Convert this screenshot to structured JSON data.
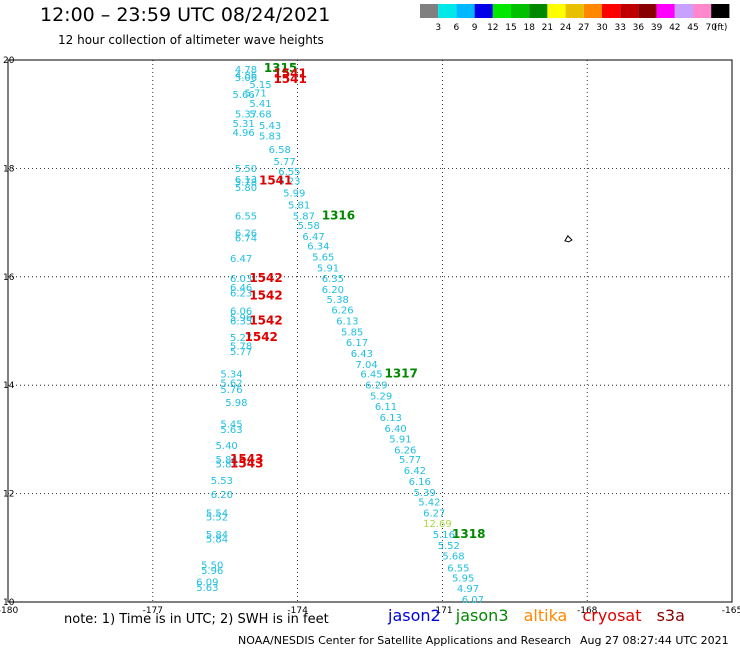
{
  "header": {
    "title": "12:00 – 23:59 UTC 08/24/2021",
    "subtitle": "12 hour collection of altimeter wave heights"
  },
  "legend": {
    "colors": [
      "#808080",
      "#00e8e8",
      "#00b8ff",
      "#0000e8",
      "#00e800",
      "#00c000",
      "#008800",
      "#ffff00",
      "#e8c000",
      "#ff8800",
      "#ff0000",
      "#c00000",
      "#880000",
      "#ff00ff",
      "#c8a0ff",
      "#ff88cc",
      "#000000"
    ],
    "labels": [
      "3",
      "6",
      "9",
      "12",
      "15",
      "18",
      "21",
      "24",
      "27",
      "30",
      "33",
      "36",
      "39",
      "42",
      "45",
      "70"
    ],
    "unit": "(ft)"
  },
  "chart_data": {
    "type": "scatter",
    "title": "12:00 – 23:59 UTC 08/24/2021",
    "xlim": [
      -180,
      -165
    ],
    "ylim": [
      10,
      20
    ],
    "x_ticks": [
      "-180",
      "-177",
      "-174",
      "-171",
      "-168",
      "-165"
    ],
    "y_ticks": [
      "10",
      "12",
      "14",
      "16",
      "18",
      "20"
    ],
    "grid": true,
    "series": [
      {
        "name": "jason2",
        "points": []
      },
      {
        "name": "jason3",
        "points": []
      },
      {
        "name": "altika",
        "points": []
      },
      {
        "name": "cryosat",
        "points": []
      },
      {
        "name": "s3a",
        "points": []
      }
    ],
    "swh_track_a": [
      {
        "x": -175.3,
        "y": 19.76,
        "v": "4.78"
      },
      {
        "x": -175.3,
        "y": 19.66,
        "v": "4.86"
      },
      {
        "x": -175.3,
        "y": 19.61,
        "v": "5.06"
      },
      {
        "x": -175.0,
        "y": 19.48,
        "v": "5.15"
      },
      {
        "x": -175.1,
        "y": 19.33,
        "v": "5.71"
      },
      {
        "x": -175.35,
        "y": 19.3,
        "v": "5.66"
      },
      {
        "x": -175.0,
        "y": 19.13,
        "v": "5.41"
      },
      {
        "x": -175.3,
        "y": 18.94,
        "v": "5.37"
      },
      {
        "x": -175.0,
        "y": 18.94,
        "v": "5.68"
      },
      {
        "x": -175.35,
        "y": 18.76,
        "v": "5.31"
      },
      {
        "x": -174.8,
        "y": 18.73,
        "v": "5.43"
      },
      {
        "x": -175.35,
        "y": 18.6,
        "v": "4.96"
      },
      {
        "x": -174.8,
        "y": 18.53,
        "v": "5.83"
      },
      {
        "x": -174.6,
        "y": 18.28,
        "v": "6.58"
      },
      {
        "x": -174.5,
        "y": 18.06,
        "v": "5.77"
      },
      {
        "x": -175.3,
        "y": 17.93,
        "v": "5.50"
      },
      {
        "x": -174.4,
        "y": 17.88,
        "v": "6.55"
      },
      {
        "x": -175.3,
        "y": 17.73,
        "v": "6.13"
      },
      {
        "x": -175.3,
        "y": 17.68,
        "v": "5.78"
      },
      {
        "x": -174.4,
        "y": 17.7,
        "v": "6.23"
      },
      {
        "x": -175.3,
        "y": 17.58,
        "v": "5.80"
      },
      {
        "x": -174.3,
        "y": 17.48,
        "v": "5.99"
      },
      {
        "x": -174.2,
        "y": 17.26,
        "v": "5.81"
      },
      {
        "x": -174.1,
        "y": 17.06,
        "v": "5.87"
      },
      {
        "x": -175.3,
        "y": 17.06,
        "v": "6.55"
      },
      {
        "x": -174.0,
        "y": 16.88,
        "v": "5.58"
      },
      {
        "x": -175.3,
        "y": 16.74,
        "v": "6.26"
      },
      {
        "x": -173.9,
        "y": 16.68,
        "v": "6.47"
      },
      {
        "x": -175.3,
        "y": 16.65,
        "v": "6.74"
      },
      {
        "x": -173.8,
        "y": 16.5,
        "v": "6.34"
      },
      {
        "x": -173.7,
        "y": 16.3,
        "v": "5.65"
      },
      {
        "x": -175.4,
        "y": 16.27,
        "v": "6.47"
      },
      {
        "x": -173.6,
        "y": 16.1,
        "v": "5.91"
      },
      {
        "x": -173.5,
        "y": 15.9,
        "v": "6.35"
      },
      {
        "x": -175.4,
        "y": 15.9,
        "v": "6.03"
      },
      {
        "x": -175.4,
        "y": 15.74,
        "v": "6.46"
      },
      {
        "x": -173.5,
        "y": 15.7,
        "v": "6.20"
      },
      {
        "x": -175.4,
        "y": 15.64,
        "v": "6.23"
      },
      {
        "x": -173.4,
        "y": 15.52,
        "v": "5.38"
      },
      {
        "x": -173.3,
        "y": 15.32,
        "v": "6.26"
      },
      {
        "x": -175.4,
        "y": 15.3,
        "v": "6.06"
      },
      {
        "x": -175.4,
        "y": 15.18,
        "v": "5.96"
      },
      {
        "x": -173.2,
        "y": 15.12,
        "v": "6.13"
      },
      {
        "x": -175.4,
        "y": 15.12,
        "v": "6.35"
      },
      {
        "x": -173.1,
        "y": 14.92,
        "v": "5.85"
      },
      {
        "x": -175.4,
        "y": 14.82,
        "v": "5.27"
      },
      {
        "x": -173.0,
        "y": 14.72,
        "v": "6.17"
      },
      {
        "x": -175.4,
        "y": 14.66,
        "v": "5.78"
      },
      {
        "x": -175.4,
        "y": 14.56,
        "v": "5.77"
      },
      {
        "x": -172.9,
        "y": 14.52,
        "v": "6.43"
      },
      {
        "x": -172.8,
        "y": 14.32,
        "v": "7.04"
      },
      {
        "x": -172.7,
        "y": 14.14,
        "v": "6.45"
      },
      {
        "x": -175.6,
        "y": 14.14,
        "v": "5.34"
      },
      {
        "x": -175.6,
        "y": 13.98,
        "v": "5.62"
      },
      {
        "x": -172.6,
        "y": 13.94,
        "v": "6.29"
      },
      {
        "x": -175.6,
        "y": 13.86,
        "v": "5.76"
      },
      {
        "x": -172.5,
        "y": 13.74,
        "v": "5.29"
      },
      {
        "x": -175.5,
        "y": 13.62,
        "v": "5.98"
      },
      {
        "x": -172.4,
        "y": 13.54,
        "v": "6.11"
      },
      {
        "x": -172.3,
        "y": 13.34,
        "v": "6.13"
      },
      {
        "x": -175.6,
        "y": 13.22,
        "v": "5.45"
      },
      {
        "x": -175.6,
        "y": 13.12,
        "v": "5.63"
      },
      {
        "x": -172.2,
        "y": 13.14,
        "v": "6.40"
      },
      {
        "x": -172.1,
        "y": 12.94,
        "v": "5.91"
      },
      {
        "x": -175.7,
        "y": 12.82,
        "v": "5.40"
      },
      {
        "x": -172.0,
        "y": 12.74,
        "v": "6.26"
      },
      {
        "x": -175.7,
        "y": 12.56,
        "v": "5.84"
      },
      {
        "x": -175.7,
        "y": 12.48,
        "v": "5.83"
      },
      {
        "x": -171.9,
        "y": 12.56,
        "v": "5.77"
      },
      {
        "x": -171.8,
        "y": 12.36,
        "v": "6.42"
      },
      {
        "x": -171.7,
        "y": 12.16,
        "v": "6.16"
      },
      {
        "x": -175.8,
        "y": 12.18,
        "v": "5.53"
      },
      {
        "x": -171.6,
        "y": 11.96,
        "v": "5.39"
      },
      {
        "x": -175.8,
        "y": 11.92,
        "v": "6.20"
      },
      {
        "x": -171.5,
        "y": 11.78,
        "v": "5.42"
      },
      {
        "x": -171.4,
        "y": 11.58,
        "v": "6.27"
      },
      {
        "x": -175.9,
        "y": 11.58,
        "v": "5.54"
      },
      {
        "x": -175.9,
        "y": 11.5,
        "v": "5.52"
      },
      {
        "x": -171.2,
        "y": 11.18,
        "v": "5.16"
      },
      {
        "x": -175.9,
        "y": 11.18,
        "v": "5.84"
      },
      {
        "x": -175.9,
        "y": 11.1,
        "v": "5.84"
      },
      {
        "x": -171.1,
        "y": 10.98,
        "v": "5.52"
      },
      {
        "x": -171.0,
        "y": 10.78,
        "v": "5.68"
      },
      {
        "x": -170.9,
        "y": 10.56,
        "v": "6.55"
      },
      {
        "x": -176.0,
        "y": 10.62,
        "v": "5.50"
      },
      {
        "x": -176.0,
        "y": 10.52,
        "v": "5.96"
      },
      {
        "x": -170.8,
        "y": 10.38,
        "v": "5.95"
      },
      {
        "x": -176.1,
        "y": 10.3,
        "v": "6.09"
      },
      {
        "x": -176.1,
        "y": 10.2,
        "v": "5.63"
      },
      {
        "x": -170.7,
        "y": 10.18,
        "v": "4.97"
      },
      {
        "x": -170.6,
        "y": 9.98,
        "v": "6.07"
      }
    ],
    "swh_green": [
      {
        "x": -171.4,
        "y": 11.38,
        "v": "12.69"
      }
    ],
    "track_labels_jason3": [
      {
        "x": -174.7,
        "y": 19.78,
        "v": "1315"
      },
      {
        "x": -173.5,
        "y": 17.06,
        "v": "1316"
      },
      {
        "x": -172.2,
        "y": 14.14,
        "v": "1317"
      },
      {
        "x": -170.8,
        "y": 11.18,
        "v": "1318"
      }
    ],
    "track_labels_cryosat": [
      {
        "x": -174.5,
        "y": 19.68,
        "v": "1541"
      },
      {
        "x": -174.5,
        "y": 19.58,
        "v": "1541"
      },
      {
        "x": -174.8,
        "y": 17.7,
        "v": "1541"
      },
      {
        "x": -175.0,
        "y": 15.9,
        "v": "1542"
      },
      {
        "x": -175.0,
        "y": 15.58,
        "v": "1542"
      },
      {
        "x": -175.0,
        "y": 15.12,
        "v": "1542"
      },
      {
        "x": -175.1,
        "y": 14.82,
        "v": "1542"
      },
      {
        "x": -175.4,
        "y": 12.56,
        "v": "1543"
      },
      {
        "x": -175.4,
        "y": 12.48,
        "v": "1543"
      }
    ],
    "marker": {
      "x": -168.4,
      "y": 16.7
    }
  },
  "note": {
    "text": "note:  1) Time is in UTC;  2) SWH is in feet"
  },
  "satellites": [
    {
      "label": "jason2",
      "color": "#0000e0"
    },
    {
      "label": "jason3",
      "color": "#008800"
    },
    {
      "label": "altika",
      "color": "#ff8800"
    },
    {
      "label": "cryosat",
      "color": "#e00000"
    },
    {
      "label": "s3a",
      "color": "#880000"
    }
  ],
  "footer": {
    "credit": "NOAA/NESDIS Center for Satellite Applications and Research",
    "timestamp": "Aug 27 08:27:44 UTC 2021"
  }
}
